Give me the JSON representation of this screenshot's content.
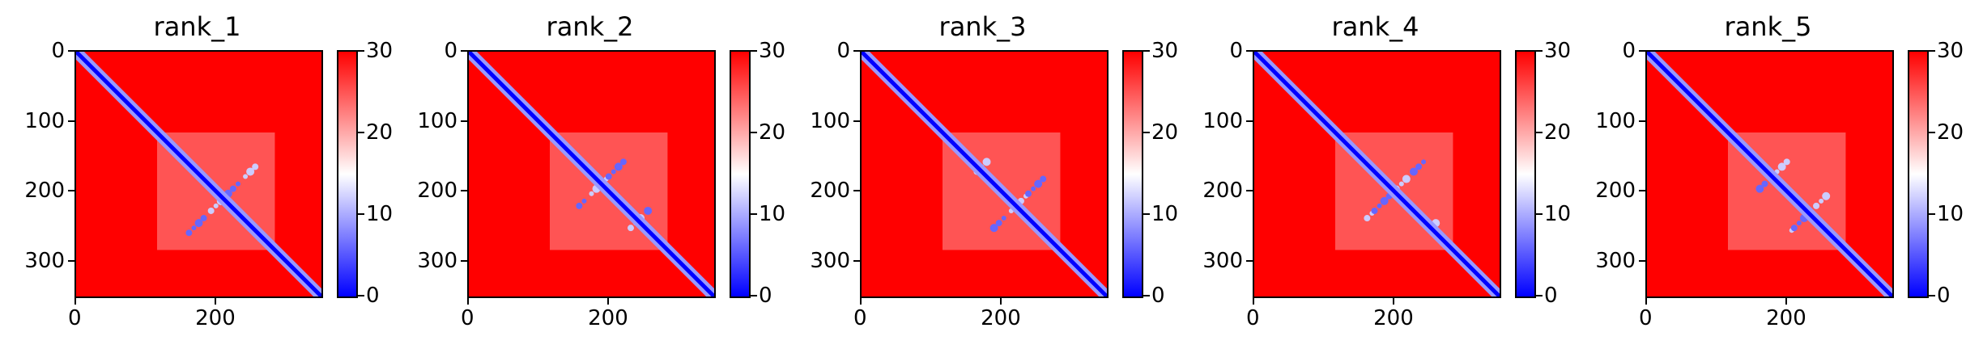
{
  "chart_data": [
    {
      "type": "heatmap",
      "title": "rank_1",
      "xlim": [
        0,
        350
      ],
      "ylim": [
        350,
        0
      ],
      "xticks": [
        "0",
        "200"
      ],
      "yticks": [
        "0",
        "100",
        "200",
        "300"
      ],
      "colorbar": {
        "range": [
          0,
          30
        ],
        "ticks": [
          "0",
          "10",
          "20",
          "30"
        ],
        "colormap": "bwr"
      }
    },
    {
      "type": "heatmap",
      "title": "rank_2",
      "xlim": [
        0,
        350
      ],
      "ylim": [
        350,
        0
      ],
      "xticks": [
        "0",
        "200"
      ],
      "yticks": [
        "0",
        "100",
        "200",
        "300"
      ],
      "colorbar": {
        "range": [
          0,
          30
        ],
        "ticks": [
          "0",
          "10",
          "20",
          "30"
        ],
        "colormap": "bwr"
      }
    },
    {
      "type": "heatmap",
      "title": "rank_3",
      "xlim": [
        0,
        350
      ],
      "ylim": [
        350,
        0
      ],
      "xticks": [
        "0",
        "200"
      ],
      "yticks": [
        "0",
        "100",
        "200",
        "300"
      ],
      "colorbar": {
        "range": [
          0,
          30
        ],
        "ticks": [
          "0",
          "10",
          "20",
          "30"
        ],
        "colormap": "bwr"
      }
    },
    {
      "type": "heatmap",
      "title": "rank_4",
      "xlim": [
        0,
        350
      ],
      "ylim": [
        350,
        0
      ],
      "xticks": [
        "0",
        "200"
      ],
      "yticks": [
        "0",
        "100",
        "200",
        "300"
      ],
      "colorbar": {
        "range": [
          0,
          30
        ],
        "ticks": [
          "0",
          "10",
          "20",
          "30"
        ],
        "colormap": "bwr"
      }
    },
    {
      "type": "heatmap",
      "title": "rank_5",
      "xlim": [
        0,
        350
      ],
      "ylim": [
        350,
        0
      ],
      "xticks": [
        "0",
        "200"
      ],
      "yticks": [
        "0",
        "100",
        "200",
        "300"
      ],
      "colorbar": {
        "range": [
          0,
          30
        ],
        "ticks": [
          "0",
          "10",
          "20",
          "30"
        ],
        "colormap": "bwr"
      }
    }
  ],
  "colors": {
    "low": "#0000ff",
    "mid": "#ffffff",
    "high": "#ff0000"
  }
}
